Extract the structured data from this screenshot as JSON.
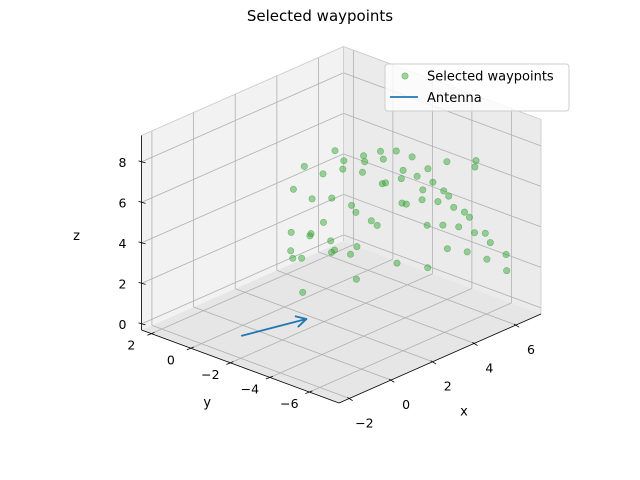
{
  "chart_data": {
    "type": "scatter",
    "projection": "3d",
    "title": "Selected waypoints",
    "xlabel": "x",
    "ylabel": "y",
    "zlabel": "z",
    "xlim": [
      -2.5,
      7.2
    ],
    "ylim": [
      -7.5,
      2.5
    ],
    "zlim": [
      -0.3,
      9.3
    ],
    "xticks": [
      -2,
      0,
      2,
      4,
      6
    ],
    "yticks": [
      2,
      0,
      -2,
      -4,
      -6
    ],
    "zticks": [
      0,
      2,
      4,
      6,
      8
    ],
    "xtick_labels": [
      "−2",
      "0",
      "2",
      "4",
      "6"
    ],
    "ytick_labels": [
      "2",
      "0",
      "−2",
      "−4",
      "−6"
    ],
    "ztick_labels": [
      "0",
      "2",
      "4",
      "6",
      "8"
    ],
    "grid": true,
    "legend_position": "upper right",
    "legend": [
      {
        "label": "Selected waypoints",
        "kind": "marker",
        "color": "#2ca02c"
      },
      {
        "label": "Antenna",
        "kind": "line",
        "color": "#1f77b4"
      }
    ],
    "colors": {
      "waypoints": "#2ca02c",
      "antenna": "#1f77b4"
    },
    "series": [
      {
        "name": "Selected waypoints",
        "kind": "scatter",
        "points": [
          [
            3.0,
            -7.0,
            7.5
          ],
          [
            3.0,
            -6.2,
            8.3
          ],
          [
            3.0,
            -5.4,
            8.6
          ],
          [
            3.0,
            -4.6,
            8.6
          ],
          [
            3.0,
            -3.8,
            8.3
          ],
          [
            3.0,
            -3.0,
            7.5
          ],
          [
            4.0,
            -7.0,
            6.0
          ],
          [
            4.0,
            -6.2,
            6.5
          ],
          [
            4.0,
            -5.4,
            6.9
          ],
          [
            4.0,
            -4.6,
            6.9
          ],
          [
            4.0,
            -3.8,
            6.5
          ],
          [
            4.0,
            -3.0,
            6.0
          ],
          [
            5.0,
            -7.0,
            4.5
          ],
          [
            5.0,
            -6.2,
            5.0
          ],
          [
            5.0,
            -5.4,
            5.2
          ],
          [
            5.0,
            -4.6,
            5.2
          ],
          [
            5.0,
            -3.8,
            5.0
          ],
          [
            5.0,
            -3.0,
            4.5
          ],
          [
            6.0,
            -7.0,
            3.0
          ],
          [
            6.0,
            -6.2,
            3.3
          ],
          [
            6.0,
            -5.4,
            3.5
          ],
          [
            6.0,
            -4.6,
            3.5
          ],
          [
            6.0,
            -3.8,
            3.3
          ],
          [
            6.0,
            -3.0,
            3.0
          ],
          [
            6.5,
            -6.5,
            1.8
          ],
          [
            6.5,
            -5.5,
            2.0
          ],
          [
            6.5,
            -4.5,
            2.0
          ],
          [
            6.5,
            -3.5,
            1.8
          ],
          [
            2.0,
            -7.0,
            8.0
          ],
          [
            2.0,
            -6.0,
            8.6
          ],
          [
            2.0,
            -5.0,
            8.8
          ],
          [
            2.0,
            -4.0,
            8.6
          ],
          [
            2.0,
            -3.0,
            8.0
          ],
          [
            1.0,
            -7.0,
            7.8
          ],
          [
            1.0,
            -6.0,
            8.4
          ],
          [
            1.0,
            -5.0,
            8.6
          ],
          [
            1.0,
            -4.0,
            8.4
          ],
          [
            1.0,
            -3.0,
            7.8
          ],
          [
            0.0,
            -6.5,
            7.2
          ],
          [
            0.0,
            -5.5,
            7.6
          ],
          [
            0.0,
            -4.5,
            7.6
          ],
          [
            0.0,
            -3.5,
            7.2
          ],
          [
            -1.0,
            -6.5,
            6.0
          ],
          [
            -1.0,
            -5.5,
            6.3
          ],
          [
            -1.0,
            -4.5,
            6.3
          ],
          [
            -1.0,
            -3.5,
            6.0
          ],
          [
            4.0,
            -1.5,
            4.0
          ],
          [
            3.5,
            -0.8,
            2.0
          ],
          [
            5.5,
            -2.0,
            1.0
          ],
          [
            6.5,
            -2.5,
            0.5
          ],
          [
            4.5,
            -1.0,
            0.3
          ],
          [
            5.0,
            -0.5,
            1.5
          ],
          [
            5.5,
            -1.0,
            2.5
          ],
          [
            1.5,
            -2.5,
            5.0
          ],
          [
            0.5,
            -2.0,
            3.5
          ],
          [
            2.5,
            -2.0,
            3.0
          ],
          [
            -0.5,
            -3.5,
            4.5
          ],
          [
            -1.5,
            -4.0,
            5.5
          ],
          [
            -2.0,
            -5.5,
            7.0
          ],
          [
            1.0,
            -1.5,
            6.5
          ],
          [
            2.0,
            -1.0,
            7.0
          ],
          [
            3.0,
            -1.5,
            7.5
          ],
          [
            0.5,
            -2.5,
            2.0
          ],
          [
            6.0,
            -4.0,
            6.5
          ],
          [
            5.5,
            -6.0,
            7.5
          ],
          [
            4.5,
            -7.0,
            8.0
          ]
        ]
      },
      {
        "name": "Antenna",
        "kind": "quiver",
        "start": [
          -1.0,
          -1.0,
          0.0
        ],
        "vector": [
          1.2,
          -2.0,
          1.0
        ]
      }
    ]
  }
}
